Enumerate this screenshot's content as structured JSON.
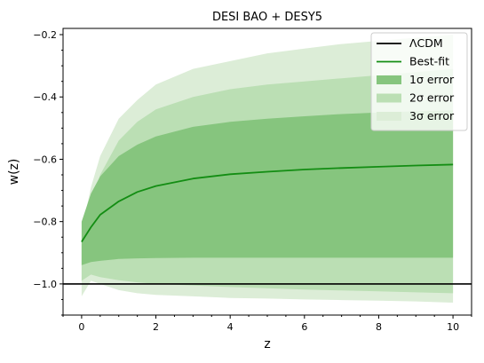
{
  "chart_data": {
    "type": "line",
    "title": "DESI BAO + DESY5",
    "xlabel": "z",
    "ylabel": "w(z)",
    "xlim": [
      -0.5,
      10.5
    ],
    "ylim": [
      -1.1,
      -0.18
    ],
    "xticks": [
      0,
      2,
      4,
      6,
      8,
      10
    ],
    "yticks": [
      -1.0,
      -0.8,
      -0.6,
      -0.4,
      -0.2
    ],
    "xtick_labels": [
      "0",
      "2",
      "4",
      "6",
      "8",
      "10"
    ],
    "ytick_labels": [
      "−1.0",
      "−0.8",
      "−0.6",
      "−0.4",
      "−0.2"
    ],
    "grid": false,
    "legend_position": "top-right",
    "series": [
      {
        "name": "ΛCDM",
        "kind": "hline",
        "y": -1.0,
        "color": "#000000"
      },
      {
        "name": "Best-fit",
        "kind": "line",
        "color": "#138d13",
        "x": [
          0,
          0.25,
          0.5,
          1,
          1.5,
          2,
          3,
          4,
          5,
          6,
          7,
          8,
          9,
          10
        ],
        "y": [
          -0.865,
          -0.818,
          -0.778,
          -0.735,
          -0.705,
          -0.686,
          -0.662,
          -0.648,
          -0.64,
          -0.633,
          -0.628,
          -0.624,
          -0.62,
          -0.617
        ]
      }
    ],
    "bands": [
      {
        "name": "3σ error",
        "color": "#dcedd7",
        "x": [
          0,
          0.25,
          0.5,
          1,
          1.5,
          2,
          3,
          4,
          5,
          6,
          7,
          8,
          9,
          10
        ],
        "upper": [
          -0.83,
          -0.69,
          -0.59,
          -0.47,
          -0.41,
          -0.36,
          -0.31,
          -0.285,
          -0.26,
          -0.245,
          -0.23,
          -0.22,
          -0.21,
          -0.2
        ],
        "lower": [
          -1.04,
          -0.99,
          -1.0,
          -1.02,
          -1.03,
          -1.035,
          -1.04,
          -1.045,
          -1.047,
          -1.05,
          -1.052,
          -1.054,
          -1.056,
          -1.06
        ]
      },
      {
        "name": "2σ error",
        "color": "#bbdfb4",
        "x": [
          0,
          0.25,
          0.5,
          1,
          1.5,
          2,
          3,
          4,
          5,
          6,
          7,
          8,
          9,
          10
        ],
        "upper": [
          -0.86,
          -0.74,
          -0.65,
          -0.54,
          -0.48,
          -0.44,
          -0.4,
          -0.375,
          -0.36,
          -0.35,
          -0.34,
          -0.33,
          -0.32,
          -0.31
        ],
        "lower": [
          -0.99,
          -0.97,
          -0.978,
          -0.988,
          -0.995,
          -1.0,
          -1.005,
          -1.01,
          -1.014,
          -1.018,
          -1.021,
          -1.024,
          -1.027,
          -1.03
        ]
      },
      {
        "name": "1σ error",
        "color": "#86c57e",
        "x": [
          0,
          0.25,
          0.5,
          1,
          1.5,
          2,
          3,
          4,
          5,
          6,
          7,
          8,
          9,
          10
        ],
        "upper": [
          -0.8,
          -0.71,
          -0.655,
          -0.59,
          -0.553,
          -0.527,
          -0.496,
          -0.48,
          -0.47,
          -0.462,
          -0.455,
          -0.45,
          -0.446,
          -0.443
        ],
        "lower": [
          -0.94,
          -0.93,
          -0.926,
          -0.92,
          -0.918,
          -0.917,
          -0.916,
          -0.916,
          -0.916,
          -0.916,
          -0.916,
          -0.916,
          -0.916,
          -0.916
        ]
      }
    ]
  }
}
